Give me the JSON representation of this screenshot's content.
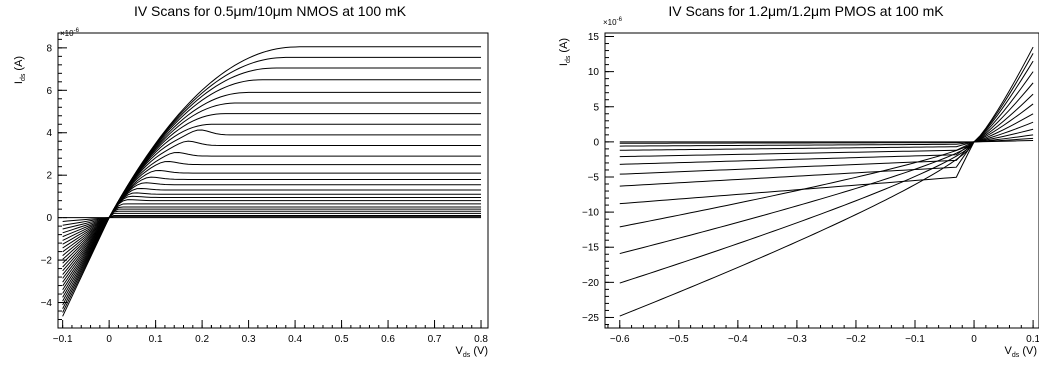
{
  "chart_data": [
    {
      "type": "line",
      "title": "IV Scans for 0.5μm/10μm NMOS at 100 mK",
      "xlabel_main": "V",
      "xlabel_sub": "ds",
      "xlabel_unit": "(V)",
      "ylabel_main": "I",
      "ylabel_sub": "ds",
      "ylabel_unit": "(A)",
      "y_multiplier": "×10",
      "y_multiplier_exp": "-6",
      "xlim": [
        -0.11,
        0.815
      ],
      "ylim": [
        -5.2,
        8.7
      ],
      "x_ticks": [
        -0.1,
        0,
        0.1,
        0.2,
        0.3,
        0.4,
        0.5,
        0.6,
        0.7,
        0.8
      ],
      "x_tick_labels": [
        "−0.1",
        "0",
        "0.1",
        "0.2",
        "0.3",
        "0.4",
        "0.5",
        "0.6",
        "0.7",
        "0.8"
      ],
      "y_ticks": [
        -4,
        -2,
        0,
        2,
        4,
        6,
        8
      ],
      "y_tick_labels": [
        "−4",
        "−2",
        "0",
        "2",
        "4",
        "6",
        "8"
      ],
      "grid": false,
      "series_family": {
        "description_x_range": [
          -0.1,
          0.8
        ],
        "saturation_currents": [
          0.05,
          0.1,
          0.2,
          0.3,
          0.4,
          0.5,
          0.65,
          0.8,
          0.95,
          1.1,
          1.3,
          1.55,
          1.8,
          2.1,
          2.5,
          2.9,
          3.4,
          3.9,
          4.4,
          4.9,
          5.4,
          5.9,
          6.5,
          7.05,
          7.55,
          8.05
        ],
        "min_current_at_x_min": -4.65
      }
    },
    {
      "type": "line",
      "title": "IV Scans for 1.2μm/1.2μm PMOS at 100 mK",
      "xlabel_main": "V",
      "xlabel_sub": "ds",
      "xlabel_unit": "(V)",
      "ylabel_main": "I",
      "ylabel_sub": "ds",
      "ylabel_unit": "(A)",
      "y_multiplier": "×10",
      "y_multiplier_exp": "-6",
      "xlim": [
        -0.625,
        0.11
      ],
      "ylim": [
        -26.5,
        15.5
      ],
      "x_ticks": [
        -0.6,
        -0.5,
        -0.4,
        -0.3,
        -0.2,
        -0.1,
        0,
        0.1
      ],
      "x_tick_labels": [
        "−0.6",
        "−0.5",
        "−0.4",
        "−0.3",
        "−0.2",
        "−0.1",
        "0",
        "0.1"
      ],
      "y_ticks": [
        -25,
        -20,
        -15,
        -10,
        -5,
        0,
        5,
        10,
        15
      ],
      "y_tick_labels": [
        "−25",
        "−20",
        "−15",
        "−10",
        "−5",
        "0",
        "5",
        "10",
        "15"
      ],
      "grid": false,
      "series_family": {
        "description_x_range": [
          -0.6,
          0.1
        ],
        "currents_at_x_min": [
          0,
          -0.2,
          -0.6,
          -1.2,
          -2.1,
          -3.2,
          -4.6,
          -6.3,
          -8.8,
          -12.1,
          -15.9,
          -20.1,
          -24.8
        ],
        "currents_at_x_max": [
          0.2,
          0.5,
          1.0,
          1.8,
          2.8,
          4.0,
          5.4,
          6.8,
          8.4,
          10.0,
          11.5,
          12.6,
          13.5
        ]
      }
    }
  ]
}
